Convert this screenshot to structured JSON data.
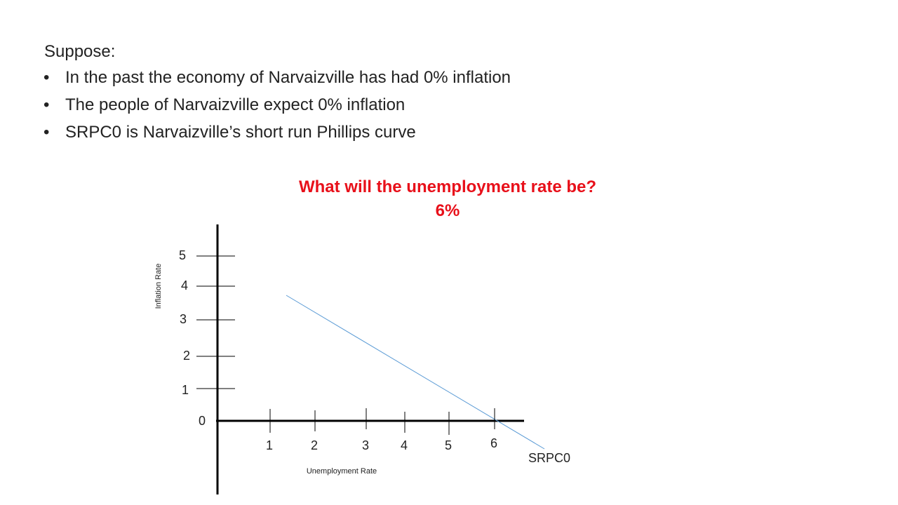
{
  "intro": "Suppose:",
  "bullets": [
    "In the past the economy  of Narvaizville has had 0% inflation",
    "The people of Narvaizville expect 0% inflation",
    "SRPC0 is Narvaizville’s short run Phillips curve"
  ],
  "question": "What will the unemployment rate be?",
  "answer": "6%",
  "graph": {
    "y_axis_label": "Inflation Rate",
    "x_axis_label": "Unemployment Rate",
    "origin_label": "0",
    "y_tick_labels": [
      "5",
      "4",
      "3",
      "2",
      "1"
    ],
    "x_tick_labels": [
      "1",
      "2",
      "3",
      "4",
      "5",
      "6"
    ],
    "curve_label": "SRPC0"
  }
}
